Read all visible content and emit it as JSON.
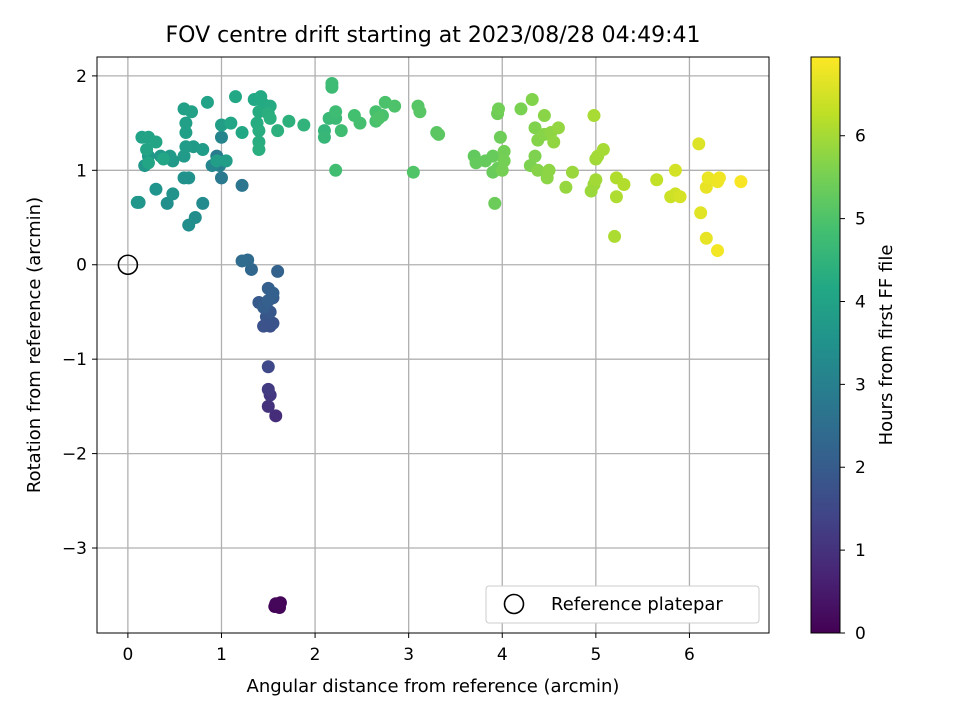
{
  "chart_data": {
    "type": "scatter",
    "title": "FOV centre drift starting at 2023/08/28 04:49:41",
    "xlabel": "Angular distance from reference (arcmin)",
    "ylabel": "Rotation from reference (arcmin)",
    "xlim": [
      -0.33,
      6.85
    ],
    "ylim": [
      -3.9,
      2.2
    ],
    "xticks": [
      0,
      1,
      2,
      3,
      4,
      5,
      6
    ],
    "yticks": [
      -3,
      -2,
      -1,
      0,
      1,
      2
    ],
    "xtick_labels": [
      "0",
      "1",
      "2",
      "3",
      "4",
      "5",
      "6"
    ],
    "ytick_labels": [
      "−3",
      "−2",
      "−1",
      "0",
      "1",
      "2"
    ],
    "grid": true,
    "colormap": "viridis",
    "colorbar": {
      "label": "Hours from first FF file",
      "range": [
        0,
        6.95
      ],
      "ticks": [
        0,
        1,
        2,
        3,
        4,
        5,
        6
      ],
      "tick_labels": [
        "0",
        "1",
        "2",
        "3",
        "4",
        "5",
        "6"
      ]
    },
    "reference": {
      "label": "Reference platepar",
      "x": 0.0,
      "y": 0.0
    },
    "legend_position": "lower-right",
    "points": [
      [
        1.57,
        -3.62,
        0.02
      ],
      [
        1.6,
        -3.6,
        0.05
      ],
      [
        1.63,
        -3.58,
        0.08
      ],
      [
        1.62,
        -3.63,
        0.1
      ],
      [
        1.58,
        -3.59,
        0.12
      ],
      [
        1.58,
        -1.6,
        0.9
      ],
      [
        1.5,
        -1.5,
        1.0
      ],
      [
        1.52,
        -1.38,
        1.1
      ],
      [
        1.5,
        -1.32,
        1.2
      ],
      [
        1.5,
        -1.08,
        1.5
      ],
      [
        1.52,
        -0.65,
        1.7
      ],
      [
        1.55,
        -0.62,
        1.8
      ],
      [
        1.48,
        -0.55,
        1.85
      ],
      [
        1.52,
        -0.5,
        1.9
      ],
      [
        1.4,
        -0.4,
        1.95
      ],
      [
        1.55,
        -0.35,
        2.0
      ],
      [
        1.5,
        -0.25,
        2.1
      ],
      [
        1.6,
        -0.07,
        2.2
      ],
      [
        1.32,
        -0.05,
        2.3
      ],
      [
        1.28,
        0.05,
        2.4
      ],
      [
        1.22,
        0.04,
        2.45
      ],
      [
        1.45,
        -0.45,
        2.05
      ],
      [
        1.5,
        -0.38,
        2.08
      ],
      [
        1.55,
        -0.3,
        2.12
      ],
      [
        1.45,
        -0.65,
        1.75
      ],
      [
        1.22,
        0.84,
        2.7
      ],
      [
        1.0,
        0.92,
        2.8
      ],
      [
        0.95,
        1.15,
        2.9
      ],
      [
        0.98,
        1.05,
        3.0
      ],
      [
        1.0,
        1.35,
        3.1
      ],
      [
        0.9,
        1.05,
        3.2
      ],
      [
        0.8,
        0.65,
        3.3
      ],
      [
        0.72,
        0.5,
        3.35
      ],
      [
        0.65,
        0.42,
        3.4
      ],
      [
        0.42,
        0.65,
        3.45
      ],
      [
        0.65,
        0.92,
        3.5
      ],
      [
        0.6,
        0.92,
        3.52
      ],
      [
        0.48,
        0.75,
        3.55
      ],
      [
        0.3,
        0.8,
        3.58
      ],
      [
        0.12,
        0.66,
        3.6
      ],
      [
        0.1,
        0.66,
        3.62
      ],
      [
        0.18,
        1.05,
        3.65
      ],
      [
        0.22,
        1.15,
        3.67
      ],
      [
        0.35,
        1.15,
        3.7
      ],
      [
        0.48,
        1.1,
        3.72
      ],
      [
        0.45,
        1.15,
        3.74
      ],
      [
        0.6,
        1.15,
        3.76
      ],
      [
        0.7,
        1.25,
        3.78
      ],
      [
        0.62,
        1.25,
        3.8
      ],
      [
        0.8,
        1.22,
        3.82
      ],
      [
        0.95,
        1.1,
        3.84
      ],
      [
        1.05,
        1.1,
        3.86
      ],
      [
        1.0,
        1.48,
        3.88
      ],
      [
        0.62,
        1.4,
        3.9
      ],
      [
        0.62,
        1.5,
        3.92
      ],
      [
        0.6,
        1.65,
        3.94
      ],
      [
        0.68,
        1.62,
        3.96
      ],
      [
        0.85,
        1.72,
        3.98
      ],
      [
        0.15,
        1.35,
        4.0
      ],
      [
        0.22,
        1.35,
        4.02
      ],
      [
        0.3,
        1.3,
        4.04
      ],
      [
        0.2,
        1.22,
        4.06
      ],
      [
        0.22,
        1.08,
        4.08
      ],
      [
        0.38,
        1.12,
        4.1
      ],
      [
        1.1,
        1.5,
        4.12
      ],
      [
        1.22,
        1.4,
        4.14
      ],
      [
        1.15,
        1.78,
        4.16
      ],
      [
        1.35,
        1.75,
        4.18
      ],
      [
        1.42,
        1.78,
        4.2
      ],
      [
        1.45,
        1.7,
        4.22
      ],
      [
        1.52,
        1.68,
        4.24
      ],
      [
        1.4,
        1.62,
        4.26
      ],
      [
        1.38,
        1.5,
        4.28
      ],
      [
        1.4,
        1.42,
        4.3
      ],
      [
        1.4,
        1.3,
        4.32
      ],
      [
        1.4,
        1.22,
        4.34
      ],
      [
        1.5,
        1.6,
        4.36
      ],
      [
        1.52,
        1.55,
        4.38
      ],
      [
        1.6,
        1.42,
        4.4
      ],
      [
        1.72,
        1.52,
        4.42
      ],
      [
        1.88,
        1.48,
        4.5
      ],
      [
        2.1,
        1.42,
        4.55
      ],
      [
        2.1,
        1.35,
        4.6
      ],
      [
        2.15,
        1.55,
        4.65
      ],
      [
        2.22,
        1.55,
        4.7
      ],
      [
        2.18,
        1.88,
        4.72
      ],
      [
        2.18,
        1.92,
        4.74
      ],
      [
        2.22,
        1.62,
        4.76
      ],
      [
        2.28,
        1.42,
        4.78
      ],
      [
        2.22,
        1.0,
        4.8
      ],
      [
        2.42,
        1.58,
        4.85
      ],
      [
        2.48,
        1.5,
        4.88
      ],
      [
        2.65,
        1.62,
        4.9
      ],
      [
        2.65,
        1.52,
        4.92
      ],
      [
        2.72,
        1.58,
        4.94
      ],
      [
        2.75,
        1.72,
        4.96
      ],
      [
        2.85,
        1.68,
        4.98
      ],
      [
        2.68,
        1.55,
        5.0
      ],
      [
        3.05,
        0.98,
        5.05
      ],
      [
        3.1,
        1.68,
        5.1
      ],
      [
        3.12,
        1.62,
        5.12
      ],
      [
        3.3,
        1.4,
        5.15
      ],
      [
        3.32,
        1.38,
        5.18
      ],
      [
        3.7,
        1.15,
        5.25
      ],
      [
        3.72,
        1.08,
        5.28
      ],
      [
        3.82,
        1.1,
        5.3
      ],
      [
        3.9,
        1.15,
        5.32
      ],
      [
        3.9,
        0.98,
        5.34
      ],
      [
        3.95,
        1.02,
        5.36
      ],
      [
        3.92,
        0.65,
        5.38
      ],
      [
        3.98,
        1.35,
        5.4
      ],
      [
        3.95,
        1.6,
        5.42
      ],
      [
        3.96,
        1.65,
        5.44
      ],
      [
        4.02,
        1.2,
        5.46
      ],
      [
        4.02,
        1.1,
        5.48
      ],
      [
        4.0,
        1.0,
        5.5
      ],
      [
        4.2,
        1.65,
        5.55
      ],
      [
        4.3,
        1.05,
        5.58
      ],
      [
        4.35,
        1.15,
        5.6
      ],
      [
        4.35,
        1.45,
        5.62
      ],
      [
        4.32,
        1.75,
        5.64
      ],
      [
        4.38,
        1.32,
        5.66
      ],
      [
        4.38,
        1.0,
        5.68
      ],
      [
        4.45,
        1.38,
        5.7
      ],
      [
        4.45,
        1.58,
        5.72
      ],
      [
        4.48,
        0.92,
        5.74
      ],
      [
        4.5,
        1.0,
        5.76
      ],
      [
        4.52,
        1.4,
        5.78
      ],
      [
        4.55,
        1.3,
        5.8
      ],
      [
        4.6,
        1.45,
        5.82
      ],
      [
        4.68,
        0.82,
        5.85
      ],
      [
        4.75,
        0.98,
        5.88
      ],
      [
        4.95,
        0.78,
        5.9
      ],
      [
        4.98,
        0.85,
        5.92
      ],
      [
        5.0,
        1.12,
        5.95
      ],
      [
        5.0,
        0.9,
        5.98
      ],
      [
        5.02,
        1.15,
        6.0
      ],
      [
        5.08,
        1.22,
        6.02
      ],
      [
        4.98,
        1.58,
        6.04
      ],
      [
        5.2,
        0.3,
        6.08
      ],
      [
        5.22,
        0.72,
        6.1
      ],
      [
        5.22,
        0.92,
        6.12
      ],
      [
        5.3,
        0.85,
        6.15
      ],
      [
        5.65,
        0.9,
        6.3
      ],
      [
        5.8,
        0.72,
        6.4
      ],
      [
        5.85,
        0.75,
        6.45
      ],
      [
        5.85,
        1.0,
        6.5
      ],
      [
        5.9,
        0.72,
        6.52
      ],
      [
        6.1,
        1.28,
        6.6
      ],
      [
        6.12,
        0.55,
        6.65
      ],
      [
        6.18,
        0.28,
        6.7
      ],
      [
        6.18,
        0.82,
        6.72
      ],
      [
        6.2,
        0.92,
        6.74
      ],
      [
        6.3,
        0.88,
        6.78
      ],
      [
        6.32,
        0.92,
        6.8
      ],
      [
        6.3,
        0.15,
        6.84
      ],
      [
        6.55,
        0.88,
        6.9
      ]
    ]
  }
}
